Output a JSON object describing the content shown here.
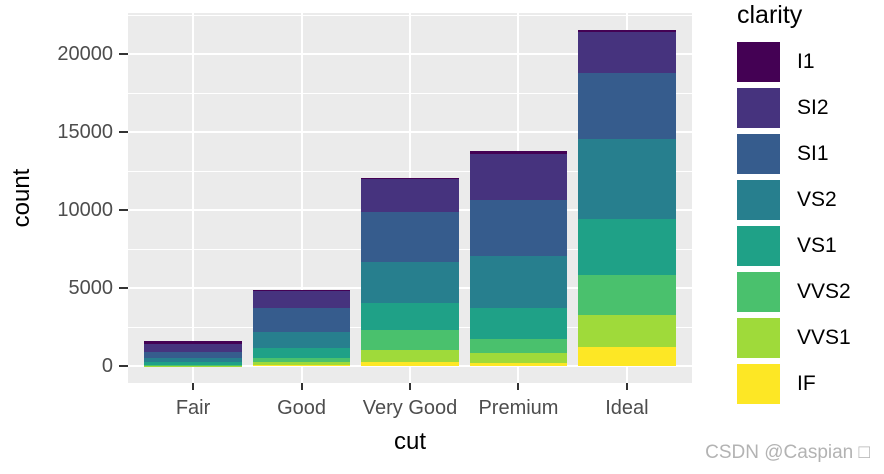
{
  "chart_data": {
    "type": "bar",
    "stacked": true,
    "title": "",
    "xlabel": "cut",
    "ylabel": "count",
    "categories": [
      "Fair",
      "Good",
      "Very Good",
      "Premium",
      "Ideal"
    ],
    "series": [
      {
        "name": "I1",
        "color": "#440154",
        "values": [
          210,
          96,
          84,
          205,
          146
        ]
      },
      {
        "name": "SI2",
        "color": "#46337E",
        "values": [
          466,
          1081,
          2100,
          2949,
          2598
        ]
      },
      {
        "name": "SI1",
        "color": "#365C8D",
        "values": [
          408,
          1560,
          3240,
          3575,
          4282
        ]
      },
      {
        "name": "VS2",
        "color": "#277F8E",
        "values": [
          261,
          978,
          2591,
          3357,
          5071
        ]
      },
      {
        "name": "VS1",
        "color": "#1FA187",
        "values": [
          170,
          648,
          1775,
          1989,
          3589
        ]
      },
      {
        "name": "VVS2",
        "color": "#4AC16D",
        "values": [
          69,
          286,
          1235,
          870,
          2606
        ]
      },
      {
        "name": "VVS1",
        "color": "#9FDA3A",
        "values": [
          17,
          186,
          789,
          616,
          2047
        ]
      },
      {
        "name": "IF",
        "color": "#FDE725",
        "values": [
          9,
          71,
          268,
          230,
          1212
        ]
      }
    ],
    "stack_order_bottom_to_top": [
      "IF",
      "VVS1",
      "VVS2",
      "VS1",
      "VS2",
      "SI1",
      "SI2",
      "I1"
    ],
    "totals": [
      1610,
      4906,
      12082,
      13791,
      21551
    ],
    "y_ticks": [
      0,
      5000,
      10000,
      15000,
      20000
    ],
    "y_tick_labels": [
      "0",
      "5000",
      "10000",
      "15000",
      "20000"
    ],
    "y_minor_ticks": [
      2500,
      7500,
      12500,
      17500,
      22500
    ],
    "ylim": [
      -1077.55,
      22628.55
    ],
    "grid": true,
    "legend_position": "right"
  },
  "axes": {
    "x_title": "cut",
    "y_title": "count"
  },
  "legend": {
    "title": "clarity",
    "entries": [
      "I1",
      "SI2",
      "SI1",
      "VS2",
      "VS1",
      "VVS2",
      "VVS1",
      "IF"
    ]
  },
  "watermark": {
    "text": "CSDN @Caspian □"
  },
  "colors": {
    "panel_bg": "#EBEBEB",
    "gridline": "#FFFFFF",
    "axis_text": "#4D4D4D",
    "axis_title": "#000000",
    "tick_mark": "#333333",
    "watermark": "#B3B3B3"
  }
}
